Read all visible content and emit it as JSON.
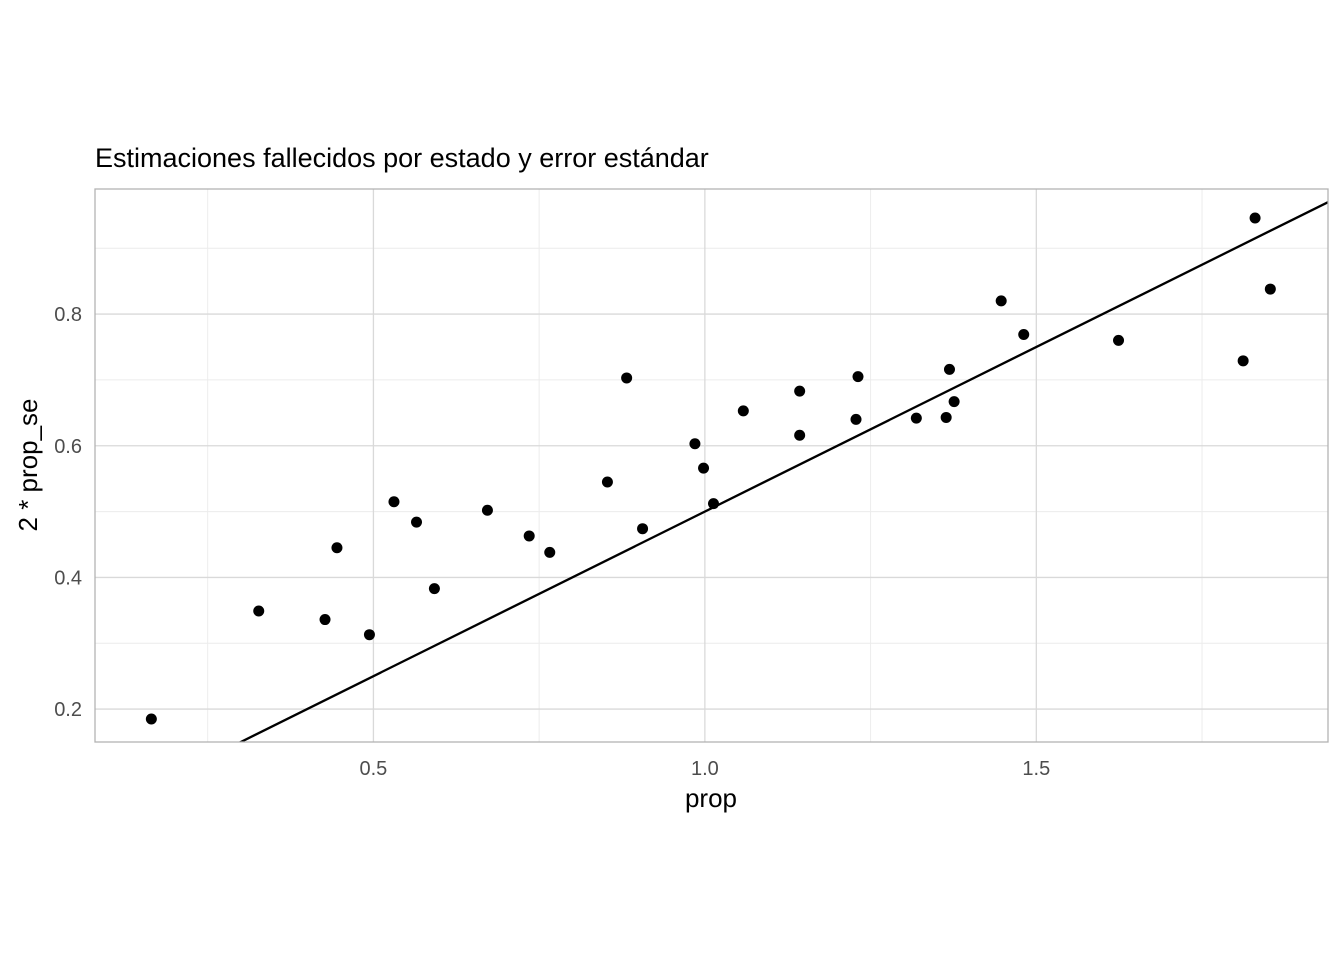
{
  "chart_data": {
    "type": "scatter",
    "title": "Estimaciones fallecidos por estado y error estándar",
    "xlabel": "prop",
    "ylabel": "2 * prop_se",
    "xlim": [
      0.08,
      1.94
    ],
    "ylim": [
      0.15,
      0.99
    ],
    "x_ticks": [
      {
        "value": 0.5,
        "label": "0.5"
      },
      {
        "value": 1.0,
        "label": "1.0"
      },
      {
        "value": 1.5,
        "label": "1.5"
      }
    ],
    "y_ticks": [
      {
        "value": 0.2,
        "label": "0.2"
      },
      {
        "value": 0.4,
        "label": "0.4"
      },
      {
        "value": 0.6,
        "label": "0.6"
      },
      {
        "value": 0.8,
        "label": "0.8"
      }
    ],
    "grid": true,
    "reference_line": {
      "slope": 0.5,
      "intercept": 0
    },
    "colors": {
      "points": "#000000",
      "line": "#000000",
      "grid_major": "#d9d9d9",
      "grid_minor": "#ececec",
      "panel_border": "#b3b3b3"
    },
    "points": [
      {
        "x": 0.165,
        "y": 0.185
      },
      {
        "x": 0.327,
        "y": 0.349
      },
      {
        "x": 0.427,
        "y": 0.336
      },
      {
        "x": 0.445,
        "y": 0.445
      },
      {
        "x": 0.494,
        "y": 0.313
      },
      {
        "x": 0.531,
        "y": 0.515
      },
      {
        "x": 0.565,
        "y": 0.484
      },
      {
        "x": 0.592,
        "y": 0.383
      },
      {
        "x": 0.672,
        "y": 0.502
      },
      {
        "x": 0.735,
        "y": 0.463
      },
      {
        "x": 0.766,
        "y": 0.438
      },
      {
        "x": 0.853,
        "y": 0.545
      },
      {
        "x": 0.882,
        "y": 0.703
      },
      {
        "x": 0.906,
        "y": 0.474
      },
      {
        "x": 0.985,
        "y": 0.603
      },
      {
        "x": 0.998,
        "y": 0.566
      },
      {
        "x": 1.013,
        "y": 0.512
      },
      {
        "x": 1.058,
        "y": 0.653
      },
      {
        "x": 1.143,
        "y": 0.683
      },
      {
        "x": 1.143,
        "y": 0.616
      },
      {
        "x": 1.228,
        "y": 0.64
      },
      {
        "x": 1.231,
        "y": 0.705
      },
      {
        "x": 1.319,
        "y": 0.642
      },
      {
        "x": 1.364,
        "y": 0.643
      },
      {
        "x": 1.369,
        "y": 0.716
      },
      {
        "x": 1.376,
        "y": 0.667
      },
      {
        "x": 1.447,
        "y": 0.82
      },
      {
        "x": 1.481,
        "y": 0.769
      },
      {
        "x": 1.624,
        "y": 0.76
      },
      {
        "x": 1.812,
        "y": 0.729
      },
      {
        "x": 1.83,
        "y": 0.946
      },
      {
        "x": 1.853,
        "y": 0.838
      }
    ]
  }
}
